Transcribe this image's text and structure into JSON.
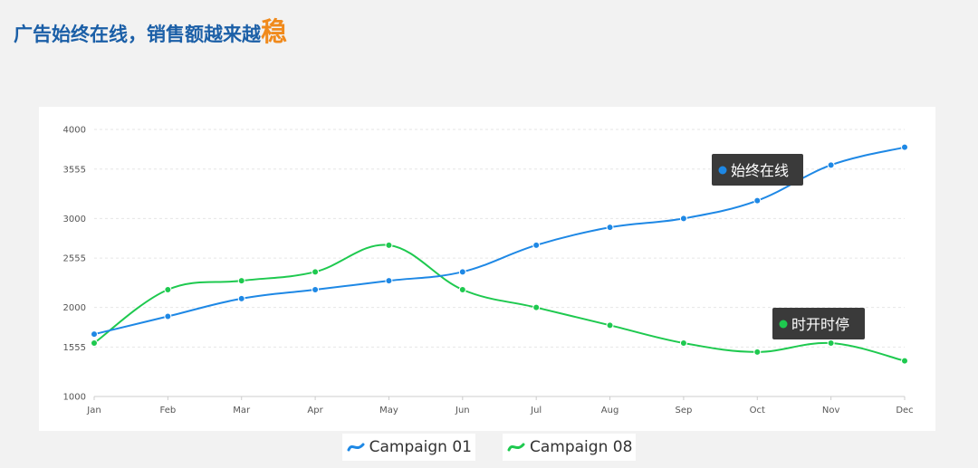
{
  "header": {
    "title_main": "广告始终在线，销售额越来越",
    "title_highlight": "稳"
  },
  "colors": {
    "title": "#1b5fa7",
    "highlight": "#f08a1c",
    "series_1": "#1e88e5",
    "series_2": "#1ec94f",
    "tooltip_bg": "#3a3a3a"
  },
  "chart_data": {
    "type": "line",
    "categories": [
      "Jan",
      "Feb",
      "Mar",
      "Apr",
      "May",
      "Jun",
      "Jul",
      "Aug",
      "Sep",
      "Oct",
      "Nov",
      "Dec"
    ],
    "y_ticks": [
      "1000",
      "1555",
      "2000",
      "2555",
      "3000",
      "3555",
      "4000"
    ],
    "ylim": [
      1000,
      4000
    ],
    "grid": true,
    "legend_position": "bottom",
    "series": [
      {
        "name": "Campaign 01",
        "values": [
          1700,
          1900,
          2100,
          2200,
          2300,
          2400,
          2700,
          2900,
          3000,
          3200,
          3600,
          3800
        ],
        "color": "#1e88e5",
        "annotation": "始终在线"
      },
      {
        "name": "Campaign 08",
        "values": [
          1600,
          2200,
          2300,
          2400,
          2700,
          2200,
          2000,
          1800,
          1600,
          1500,
          1600,
          1400
        ],
        "color": "#1ec94f",
        "annotation": "时开时停"
      }
    ]
  }
}
